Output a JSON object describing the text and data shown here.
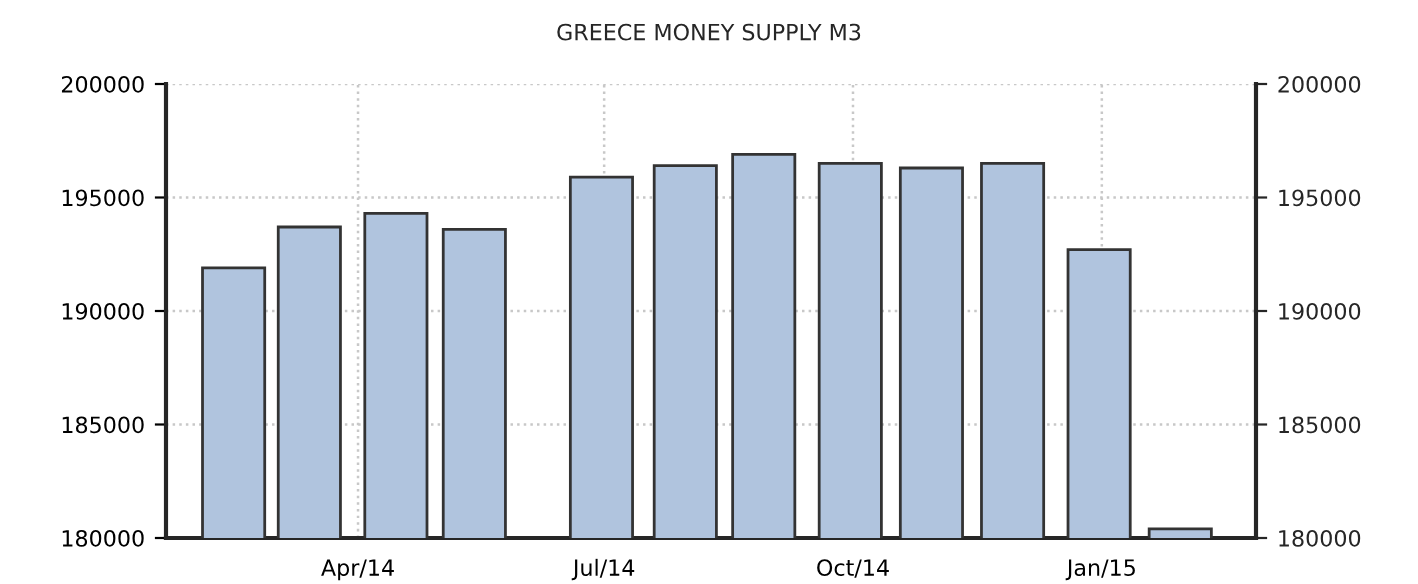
{
  "chart_data": {
    "type": "bar",
    "title": "GREECE MONEY SUPPLY M3",
    "x": [
      "2014-02-14",
      "2014-03-14",
      "2014-04-15",
      "2014-05-14",
      "2014-06-30",
      "2014-07-31",
      "2014-08-29",
      "2014-09-30",
      "2014-10-30",
      "2014-11-29",
      "2014-12-31",
      "2015-01-30"
    ],
    "series": [
      {
        "color": "#b0c4de",
        "values": [
          191900,
          193700,
          194300,
          193600,
          195900,
          196400,
          196900,
          196500,
          196300,
          196500,
          192700,
          180400
        ]
      }
    ],
    "xlim": [
      "2014-01-20",
      "2015-02-27"
    ],
    "xticks": [
      {
        "value": "2014-04-01",
        "label": "Apr/14"
      },
      {
        "value": "2014-07-01",
        "label": "Jul/14"
      },
      {
        "value": "2014-10-01",
        "label": "Oct/14"
      },
      {
        "value": "2015-01-01",
        "label": "Jan/15"
      }
    ],
    "ylim": [
      180000,
      200000
    ],
    "yticks": [
      180000,
      185000,
      190000,
      195000,
      200000
    ],
    "y2lim": [
      180000,
      200000
    ],
    "y2ticks": [
      180000,
      185000,
      190000,
      195000,
      200000
    ],
    "grid": true,
    "legend": false
  }
}
